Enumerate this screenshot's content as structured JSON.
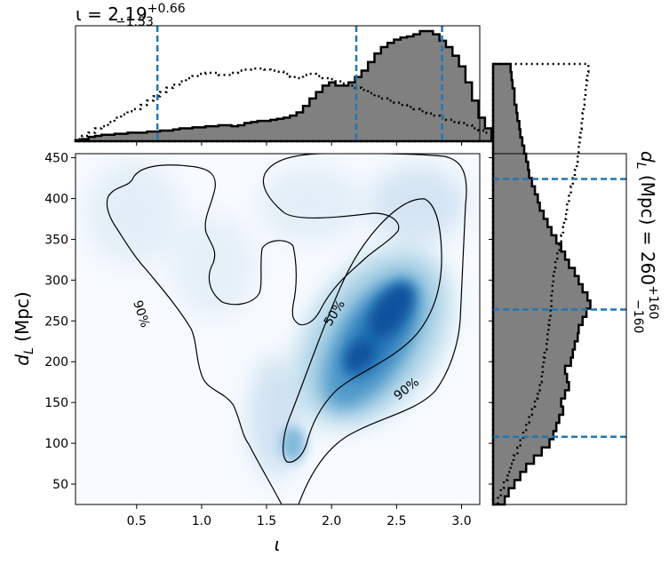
{
  "chart_data": {
    "type": "corner-plot",
    "top_title": {
      "main": "ι = 2.19",
      "sup": "+0.66",
      "sub": "−1.53"
    },
    "right_title": {
      "main": "d",
      "main_sub": "L",
      "rest": " (Mpc) = 260",
      "sup": "+160",
      "sub": "−160"
    },
    "xlabel": "ι",
    "ylabel": {
      "main": "d",
      "sub": "L",
      "rest": " (Mpc)"
    },
    "xlim": [
      0.03,
      3.14
    ],
    "ylim": [
      25,
      455
    ],
    "xticks": [
      "0.5",
      "1.0",
      "1.5",
      "2.0",
      "2.5",
      "3.0"
    ],
    "yticks": [
      "50",
      "100",
      "150",
      "200",
      "250",
      "300",
      "350",
      "400",
      "450"
    ],
    "contour_labels": [
      "90%",
      "50%",
      "90%"
    ],
    "colors": {
      "cmap_low": "#f7fbff",
      "cmap_high": "#08306b",
      "hist_fill": "#808080",
      "quantile": "#1f77b4"
    },
    "iota_quantiles": [
      0.66,
      2.19,
      2.85
    ],
    "dl_quantiles": [
      108,
      264,
      424
    ],
    "iota_hist": {
      "edges_start": 0.03,
      "bin_width": 0.05,
      "posterior": [
        1,
        2,
        4,
        5,
        6,
        6,
        7,
        7,
        8,
        8,
        8,
        9,
        9,
        10,
        10,
        11,
        12,
        12,
        13,
        13,
        14,
        14,
        15,
        15,
        14,
        15,
        17,
        18,
        19,
        19,
        20,
        21,
        22,
        24,
        27,
        33,
        40,
        46,
        52,
        55,
        52,
        52,
        55,
        60,
        66,
        74,
        82,
        88,
        92,
        95,
        97,
        98,
        100,
        103,
        103,
        100,
        94,
        88,
        80,
        70,
        55,
        38,
        22,
        12
      ],
      "prior": [
        2,
        5,
        8,
        12,
        14,
        18,
        22,
        25,
        28,
        30,
        34,
        38,
        42,
        46,
        50,
        53,
        56,
        59,
        61,
        63,
        64,
        64,
        62,
        62,
        64,
        66,
        67,
        68,
        68,
        67,
        66,
        65,
        63,
        60,
        59,
        62,
        63,
        61,
        59,
        58,
        56,
        54,
        52,
        50,
        48,
        45,
        42,
        40,
        38,
        36,
        34,
        32,
        30,
        28,
        26,
        24,
        22,
        20,
        18,
        17,
        15,
        12,
        10,
        8
      ]
    },
    "dl_hist": {
      "edges_start": 25,
      "bin_width": 10,
      "posterior": [
        12,
        16,
        22,
        28,
        34,
        42,
        50,
        58,
        62,
        65,
        68,
        72,
        70,
        74,
        78,
        76,
        74,
        80,
        82,
        84,
        87,
        88,
        92,
        96,
        100,
        97,
        92,
        88,
        84,
        78,
        74,
        70,
        65,
        60,
        56,
        52,
        48,
        46,
        43,
        40,
        37,
        36,
        34,
        32,
        30,
        28,
        27,
        25,
        24,
        22,
        22,
        20,
        19,
        18
      ],
      "prior": [
        5,
        8,
        11,
        15,
        18,
        21,
        25,
        28,
        31,
        34,
        37,
        40,
        43,
        46,
        48,
        50,
        51,
        52,
        53,
        55,
        56,
        57,
        58,
        59,
        60,
        60,
        61,
        62,
        63,
        64,
        66,
        68,
        70,
        72,
        73,
        75,
        76,
        78,
        80,
        82,
        84,
        86,
        87,
        88,
        89,
        90,
        91,
        92,
        93,
        94,
        95,
        96,
        97,
        98
      ]
    }
  }
}
